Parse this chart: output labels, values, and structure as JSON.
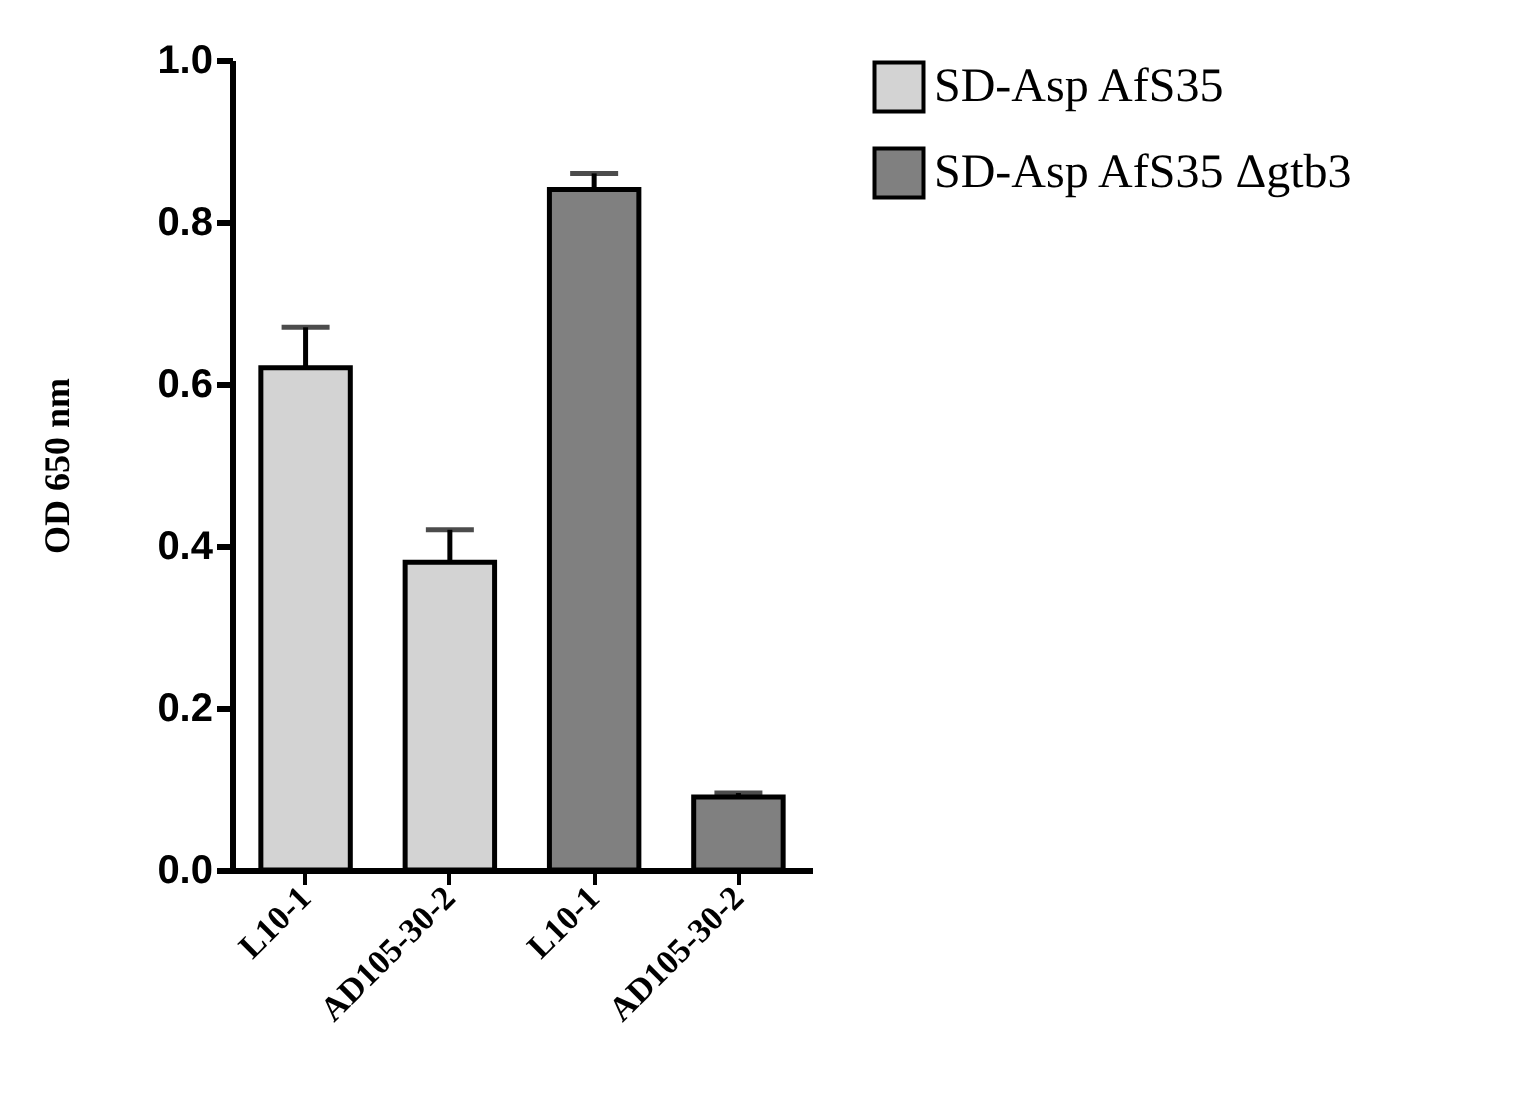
{
  "chart_data": {
    "type": "bar",
    "ylabel": "OD 650 nm",
    "categories": [
      "L10-1",
      "AD105-30-2",
      "L10-1",
      "AD105-30-2"
    ],
    "series": [
      {
        "name": "SD-Asp AfS35",
        "color": "#d3d3d3",
        "values": [
          0.62,
          0.38,
          null,
          null
        ],
        "errors": [
          [
            0.62,
            0.67
          ],
          [
            0.38,
            0.42
          ],
          null,
          null
        ]
      },
      {
        "name": "SD-Asp AfS35 Δgtb3",
        "color": "#808080",
        "values": [
          null,
          null,
          0.84,
          0.09
        ],
        "errors": [
          null,
          null,
          [
            0.84,
            0.86
          ],
          [
            0.09,
            0.095
          ]
        ]
      }
    ],
    "ylim": [
      0,
      1
    ],
    "yticks": [
      {
        "value": 0,
        "label": "0.0"
      },
      0.2,
      0.4,
      0.6,
      0.8,
      {
        "value": 1,
        "label": "1.0"
      }
    ],
    "grid": false,
    "legend": "right"
  }
}
